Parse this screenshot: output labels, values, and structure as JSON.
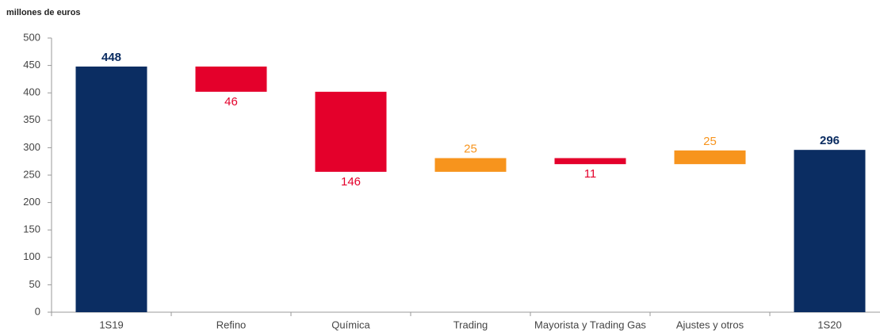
{
  "chart_data": {
    "type": "waterfall",
    "title": "millones de euros",
    "categories": [
      "1S19",
      "Refino",
      "Química",
      "Trading",
      "Mayorista y Trading Gas",
      "Ajustes y otros",
      "1S20"
    ],
    "measures": [
      "absolute",
      "relative",
      "relative",
      "relative",
      "relative",
      "relative",
      "total"
    ],
    "values": [
      448,
      -46,
      -146,
      25,
      -11,
      25,
      296
    ],
    "value_labels": [
      "448",
      "46",
      "146",
      "25",
      "11",
      "25",
      "296"
    ],
    "colors": {
      "total": "#0b2d62",
      "decrease": "#e4002b",
      "increase": "#f7941d"
    },
    "ylim": [
      0,
      500
    ],
    "yticks": [
      0,
      50,
      100,
      150,
      200,
      250,
      300,
      350,
      400,
      450,
      500
    ],
    "grid": false
  }
}
